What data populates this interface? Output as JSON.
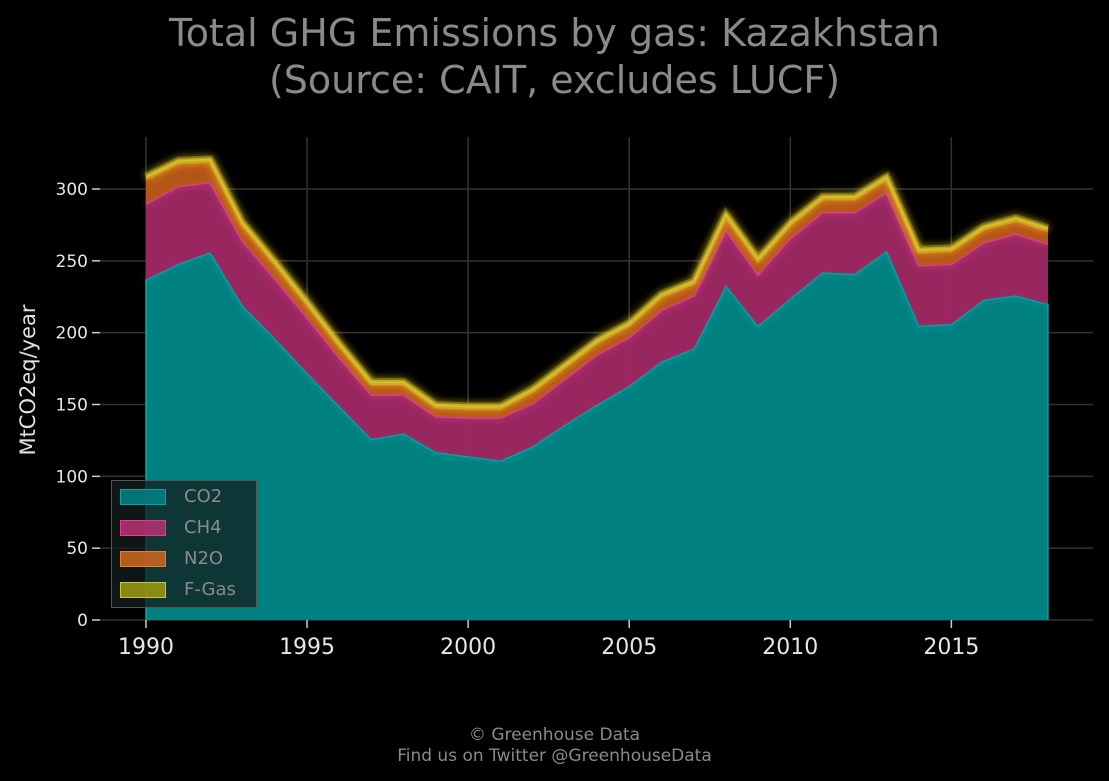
{
  "title_line1": "Total GHG Emissions by gas: Kazakhstan",
  "title_line2": "(Source: CAIT, excludes LUCF)",
  "credit_line1": "© Greenhouse Data",
  "credit_line2": "Find us on Twitter @GreenhouseData",
  "colors": {
    "background": "#000000",
    "grid": "#333333",
    "CO2": "#008080",
    "CH4": "#b0306e",
    "N2O": "#c8641e",
    "F-Gas": "#b4b41e"
  },
  "chart_data": {
    "type": "area",
    "stacked": true,
    "ylabel": "MtCO2eq/year",
    "xlabel": "",
    "xlim": [
      1990,
      2018
    ],
    "ylim": [
      0,
      330
    ],
    "xticks": [
      1990,
      1995,
      2000,
      2005,
      2010,
      2015
    ],
    "yticks": [
      0,
      50,
      100,
      150,
      200,
      250,
      300
    ],
    "grid": true,
    "legend_position": "bottom-left",
    "x": [
      1990,
      1991,
      1992,
      1993,
      1994,
      1995,
      1996,
      1997,
      1998,
      1999,
      2000,
      2001,
      2002,
      2003,
      2004,
      2005,
      2006,
      2007,
      2008,
      2009,
      2010,
      2011,
      2012,
      2013,
      2014,
      2015,
      2016,
      2017,
      2018
    ],
    "series": [
      {
        "name": "CO2",
        "values": [
          237,
          248,
          256,
          219,
          196,
          172,
          149,
          126,
          130,
          117,
          114,
          111,
          121,
          136,
          150,
          163,
          180,
          189,
          233,
          205,
          224,
          242,
          241,
          257,
          205,
          206,
          223,
          226,
          220
        ]
      },
      {
        "name": "CH4",
        "values": [
          53,
          54,
          49,
          45,
          42,
          39,
          34,
          31,
          27,
          25,
          27,
          30,
          30,
          32,
          35,
          34,
          36,
          37,
          39,
          36,
          42,
          42,
          43,
          41,
          42,
          42,
          40,
          43,
          42
        ]
      },
      {
        "name": "N2O",
        "values": [
          17,
          16,
          14,
          11,
          10,
          9,
          8,
          7,
          7,
          6,
          6,
          6,
          8,
          8,
          8,
          8,
          9,
          8,
          9,
          9,
          9,
          9,
          9,
          9,
          9,
          9,
          9,
          9,
          9
        ]
      },
      {
        "name": "F-Gas",
        "values": [
          2,
          2,
          2,
          2,
          2,
          2,
          2,
          2,
          2,
          2,
          2,
          2,
          2,
          2,
          2,
          2,
          2,
          2,
          2,
          2,
          2,
          2,
          2,
          2,
          2,
          2,
          2,
          2,
          2
        ]
      }
    ]
  }
}
